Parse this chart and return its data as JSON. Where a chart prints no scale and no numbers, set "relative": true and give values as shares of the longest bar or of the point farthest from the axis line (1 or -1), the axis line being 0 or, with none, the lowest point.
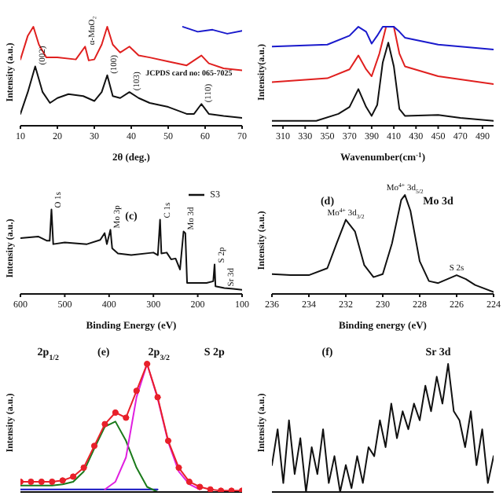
{
  "chart_data": [
    {
      "type": "line",
      "relative": true,
      "xlabel": "2θ (deg.)",
      "ylabel": "Intensity (a.u.)",
      "xlim": [
        10,
        70
      ],
      "xticks": [
        10,
        20,
        30,
        40,
        50,
        60,
        70
      ],
      "tick_labels": "x",
      "annotations": [
        {
          "text": "(002)",
          "x": 14,
          "y": 0.6
        },
        {
          "text": "(100)",
          "x": 33.5,
          "y": 0.51
        },
        {
          "text": "(103)",
          "x": 39.5,
          "y": 0.34
        },
        {
          "text": "(110)",
          "x": 59,
          "y": 0.22
        },
        {
          "text": "α-MnO₂",
          "x": 27.5,
          "y": 0.8
        },
        "JCPDS card no: 065-7025"
      ],
      "series": [
        {
          "color": "#111111",
          "x": [
            10,
            12,
            14,
            16,
            18,
            20,
            23,
            27,
            30,
            32,
            33.5,
            35,
            37,
            39.5,
            42,
            45,
            50,
            55,
            57,
            59,
            61,
            65,
            70
          ],
          "values": [
            0.12,
            0.34,
            0.6,
            0.34,
            0.23,
            0.28,
            0.32,
            0.3,
            0.25,
            0.34,
            0.51,
            0.3,
            0.28,
            0.34,
            0.28,
            0.23,
            0.19,
            0.12,
            0.12,
            0.22,
            0.12,
            0.1,
            0.08
          ]
        },
        {
          "color": "#e0201f",
          "x": [
            10,
            12,
            13.5,
            15,
            17,
            20,
            25,
            27.5,
            28.5,
            30,
            32,
            33.5,
            35,
            37,
            39.5,
            42,
            45,
            50,
            55,
            59,
            61,
            65,
            70
          ],
          "values": [
            0.67,
            0.91,
            1,
            0.82,
            0.69,
            0.69,
            0.67,
            0.8,
            0.66,
            0.67,
            0.82,
            1,
            0.82,
            0.74,
            0.8,
            0.71,
            0.69,
            0.65,
            0.61,
            0.71,
            0.63,
            0.58,
            0.56
          ]
        },
        {
          "color": "#1a1acc",
          "x": [
            54,
            58,
            62,
            66,
            70
          ],
          "values": [
            1,
            0.95,
            0.97,
            0.93,
            0.96
          ]
        }
      ]
    },
    {
      "type": "line",
      "relative": true,
      "xlabel": "Wavenumber(cm$^{-1}$)",
      "ylabel": "Intensity(a.u.)",
      "xlim": [
        300,
        500
      ],
      "xticks": [
        310,
        330,
        350,
        370,
        390,
        410,
        430,
        450,
        470,
        490
      ],
      "tick_labels": "x",
      "series": [
        {
          "color": "#111111",
          "x": [
            300,
            340,
            360,
            370,
            378,
            385,
            390,
            395,
            400,
            405,
            410,
            415,
            420,
            450,
            470,
            500
          ],
          "values": [
            0.05,
            0.05,
            0.12,
            0.19,
            0.37,
            0.19,
            0.1,
            0.21,
            0.64,
            0.84,
            0.6,
            0.17,
            0.1,
            0.11,
            0.08,
            0.05
          ]
        },
        {
          "color": "#e0201f",
          "x": [
            300,
            350,
            370,
            378,
            385,
            390,
            397,
            403,
            410,
            415,
            420,
            450,
            500
          ],
          "values": [
            0.44,
            0.48,
            0.57,
            0.71,
            0.57,
            0.5,
            0.73,
            1,
            1,
            0.73,
            0.6,
            0.5,
            0.42
          ]
        },
        {
          "color": "#1a1acc",
          "x": [
            300,
            350,
            370,
            378,
            385,
            390,
            395,
            400,
            410,
            415,
            420,
            450,
            500
          ],
          "values": [
            0.8,
            0.82,
            0.91,
            1,
            0.95,
            0.83,
            0.91,
            1,
            1,
            0.95,
            0.89,
            0.82,
            0.77
          ]
        }
      ]
    },
    {
      "type": "line",
      "relative": true,
      "xlabel": "Binding Energy (eV)",
      "ylabel": "Intensity (a.u.)",
      "xlim": [
        600,
        100
      ],
      "xticks": [
        600,
        500,
        400,
        300,
        200,
        100
      ],
      "tick_labels": "x",
      "legend": "top right",
      "annotations": [
        {
          "text": "O 1s",
          "x": 530,
          "y": 1
        },
        {
          "text": "Mo 3p",
          "x": 397,
          "y": 0.76
        },
        {
          "text": "C 1s",
          "x": 285,
          "y": 0.88
        },
        {
          "text": "Mo 3d",
          "x": 232,
          "y": 0.74
        },
        {
          "text": "S 2p",
          "x": 162,
          "y": 0.35
        },
        {
          "text": "Sr 3d",
          "x": 140,
          "y": 0.07
        },
        "(c)"
      ],
      "series": [
        {
          "name": "S3",
          "color": "#111111",
          "x": [
            600,
            560,
            540,
            534,
            530,
            526,
            500,
            450,
            420,
            410,
            405,
            397,
            393,
            380,
            350,
            300,
            290,
            285,
            282,
            270,
            260,
            250,
            240,
            232,
            228,
            224,
            200,
            180,
            165,
            162,
            160,
            140,
            120,
            100
          ],
          "values": [
            0.66,
            0.68,
            0.63,
            0.63,
            1,
            0.59,
            0.61,
            0.59,
            0.64,
            0.72,
            0.59,
            0.76,
            0.54,
            0.48,
            0.46,
            0.49,
            0.46,
            0.88,
            0.48,
            0.49,
            0.41,
            0.42,
            0.29,
            0.74,
            0.72,
            0.13,
            0.13,
            0.13,
            0.15,
            0.35,
            0.09,
            0.07,
            0.06,
            0.05
          ]
        }
      ]
    },
    {
      "type": "line",
      "relative": true,
      "xlabel": "Binding energy (eV)",
      "ylabel": "Intensity (a.u.)",
      "xlim": [
        236,
        224
      ],
      "xticks": [
        236,
        234,
        232,
        230,
        228,
        226,
        224
      ],
      "tick_labels": "x",
      "annotations": [
        {
          "text": "Mo$^{4+}$ 3d$_{3/2}$",
          "x": 232,
          "y": 0.75
        },
        {
          "text": "Mo$^{4+}$ 3d$_{5/2}$",
          "x": 228.8,
          "y": 1
        },
        {
          "text": "S 2s",
          "x": 226,
          "y": 0.19
        },
        "(d)",
        "Mo 3d"
      ],
      "series": [
        {
          "color": "#111111",
          "x": [
            236,
            235,
            234,
            233,
            232.5,
            232,
            231.5,
            231,
            230.5,
            230,
            229.5,
            229,
            228.8,
            228.5,
            228,
            227.5,
            227,
            226,
            225.5,
            225,
            224
          ],
          "values": [
            0.2,
            0.19,
            0.19,
            0.26,
            0.51,
            0.75,
            0.63,
            0.29,
            0.17,
            0.2,
            0.51,
            0.95,
            1,
            0.84,
            0.33,
            0.13,
            0.11,
            0.19,
            0.15,
            0.09,
            0.02
          ]
        }
      ]
    },
    {
      "type": "line",
      "relative": true,
      "ylabel": "Intensity (a.u.)",
      "tick_labels": false,
      "categories": [
        null,
        null,
        null,
        null,
        null,
        null,
        null,
        null,
        null,
        null,
        null,
        null,
        null,
        null,
        null,
        null,
        null,
        null,
        null,
        null,
        null,
        null
      ],
      "annotations": [
        "2p$_{1/2}$",
        "(e)",
        "2p$_{3/2}$",
        "S 2p"
      ],
      "series": [
        {
          "color": "#1010c0",
          "values": [
            0.02,
            0.02,
            0.02,
            0.02,
            0.02,
            0.02,
            0.02,
            0.02,
            0.02,
            0.02,
            0.02,
            0.02,
            0.02,
            0.02,
            null,
            null,
            null,
            null,
            null,
            null,
            null,
            null
          ]
        },
        {
          "color": "#1a7a1a",
          "values": [
            0.05,
            0.05,
            0.05,
            0.05,
            0.06,
            0.08,
            0.16,
            0.34,
            0.51,
            0.55,
            0.4,
            0.19,
            0.04,
            0,
            null,
            null,
            null,
            null,
            null,
            null,
            null,
            null
          ]
        },
        {
          "color": "#e020e0",
          "values": [
            null,
            null,
            null,
            null,
            null,
            null,
            null,
            null,
            0.02,
            0.08,
            0.27,
            0.74,
            1,
            0.73,
            0.39,
            0.16,
            0.06,
            0.02,
            null,
            null,
            null,
            null
          ]
        },
        {
          "color": "#e8202a",
          "marker": "circle",
          "values": [
            0.08,
            0.08,
            0.08,
            0.08,
            0.09,
            0.12,
            0.19,
            0.36,
            0.53,
            0.62,
            0.58,
            0.79,
            1,
            0.74,
            0.4,
            0.19,
            0.08,
            0.04,
            0.02,
            0.01,
            0.01,
            0.01
          ]
        }
      ]
    },
    {
      "type": "line",
      "relative": true,
      "ylabel": "Intensity (a.u.)",
      "tick_labels": false,
      "categories": [
        null,
        null,
        null,
        null,
        null,
        null,
        null,
        null,
        null,
        null,
        null,
        null,
        null,
        null,
        null,
        null,
        null,
        null,
        null,
        null,
        null,
        null,
        null,
        null,
        null,
        null,
        null,
        null,
        null,
        null,
        null,
        null,
        null,
        null,
        null,
        null,
        null,
        null,
        null,
        null
      ],
      "annotations": [
        "(f)",
        "Sr 3d"
      ],
      "series": [
        {
          "color": "#111111",
          "values": [
            0.21,
            0.49,
            0.07,
            0.56,
            0.14,
            0.42,
            0,
            0.35,
            0.14,
            0.49,
            0.07,
            0.28,
            0,
            0.21,
            0.03,
            0.28,
            0.07,
            0.35,
            0.28,
            0.56,
            0.35,
            0.69,
            0.42,
            0.63,
            0.49,
            0.69,
            0.56,
            0.83,
            0.63,
            0.9,
            0.69,
            1,
            0.63,
            0.56,
            0.35,
            0.63,
            0.21,
            0.49,
            0.07,
            0.28
          ]
        }
      ]
    }
  ]
}
